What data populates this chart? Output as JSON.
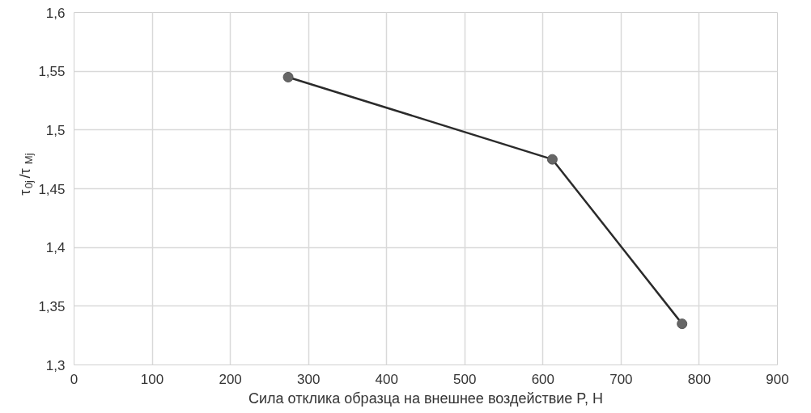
{
  "chart_data": {
    "type": "line",
    "xlabel": "Сила отклика образца на внешнее воздействие P, Н",
    "ylabel": "τ$_{0j}$/τ$_{Mj}$",
    "x": [
      274,
      612,
      778
    ],
    "series": [
      {
        "color": "#2b2b2b",
        "values": [
          1.545,
          1.475,
          1.335
        ]
      }
    ],
    "xlim": [
      0,
      900
    ],
    "xticks": [
      0,
      100,
      200,
      300,
      400,
      500,
      600,
      700,
      800,
      900
    ],
    "ylim": [
      1.3,
      1.6
    ],
    "yticks": [
      {
        "value": 1.3,
        "label": "1,3"
      },
      {
        "value": 1.35,
        "label": "1,35"
      },
      {
        "value": 1.4,
        "label": "1,4"
      },
      {
        "value": 1.45,
        "label": "1,45"
      },
      {
        "value": 1.5,
        "label": "1,5"
      },
      {
        "value": 1.55,
        "label": "1,55"
      },
      {
        "value": 1.6,
        "label": "1,6"
      }
    ],
    "grid": true,
    "marker": "circle",
    "line_style": "solid"
  }
}
